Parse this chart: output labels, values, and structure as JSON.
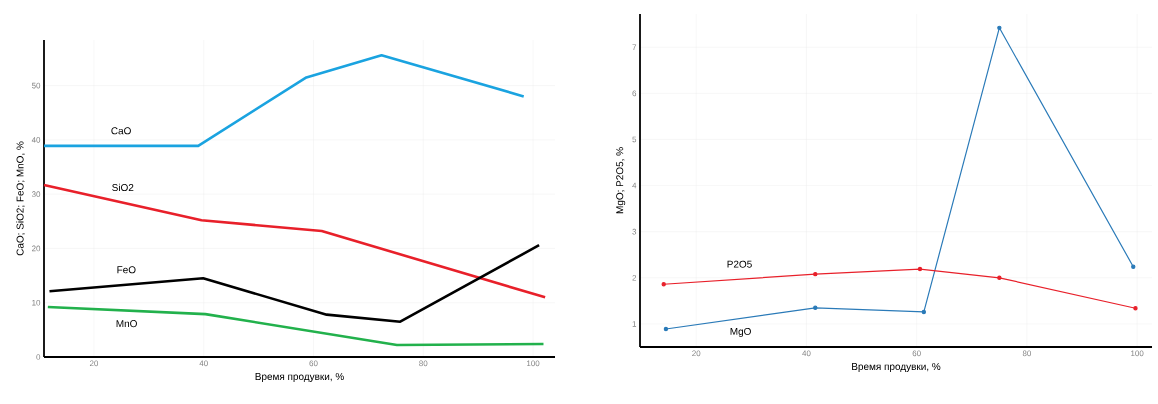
{
  "chart_data": [
    {
      "type": "line",
      "xlabel": "Время продувки, %",
      "ylabel": "CaO; SiO2; FeO; MnO, %",
      "xlim": [
        10.9,
        104
      ],
      "ylim": [
        0,
        58.4
      ],
      "xticks": [
        20,
        40,
        60,
        80,
        100
      ],
      "yticks": [
        0,
        10,
        20,
        30,
        40,
        50
      ],
      "grid": true,
      "marker": "none",
      "series": [
        {
          "name": "CaO",
          "color": "#1aa3e0",
          "x": [
            10.9,
            39.0,
            58.7,
            72.4,
            98.3
          ],
          "values": [
            38.9,
            38.9,
            51.5,
            55.6,
            48.0
          ]
        },
        {
          "name": "SiO2",
          "color": "#e8202a",
          "x": [
            10.9,
            39.6,
            61.5,
            102.2
          ],
          "values": [
            31.7,
            25.2,
            23.2,
            11.0
          ]
        },
        {
          "name": "FeO",
          "color": "#000000",
          "x": [
            11.9,
            39.9,
            62.4,
            75.8,
            101.1
          ],
          "values": [
            12.1,
            14.5,
            7.8,
            6.5,
            20.6
          ]
        },
        {
          "name": "MnO",
          "color": "#22b14c",
          "x": [
            11.6,
            40.3,
            75.2,
            101.9
          ],
          "values": [
            9.2,
            7.9,
            2.2,
            2.4
          ]
        }
      ]
    },
    {
      "type": "line",
      "xlabel": "Время продувки, %",
      "ylabel": "MgO; P2O5, %",
      "xlim": [
        9.8,
        102.7
      ],
      "ylim": [
        0.5,
        7.72
      ],
      "xticks": [
        20,
        40,
        60,
        80,
        100
      ],
      "yticks": [
        1,
        2,
        3,
        4,
        5,
        6,
        7
      ],
      "grid": true,
      "marker": "circle",
      "series": [
        {
          "name": "MgO",
          "color": "#2a7ab8",
          "x": [
            14.5,
            41.6,
            61.3,
            75.0,
            99.3
          ],
          "values": [
            0.89,
            1.35,
            1.26,
            7.42,
            2.24
          ]
        },
        {
          "name": "P2O5",
          "color": "#e8202a",
          "x": [
            14.1,
            41.6,
            60.6,
            75.0,
            99.7
          ],
          "values": [
            1.86,
            2.08,
            2.19,
            2.0,
            1.34
          ]
        }
      ]
    }
  ]
}
